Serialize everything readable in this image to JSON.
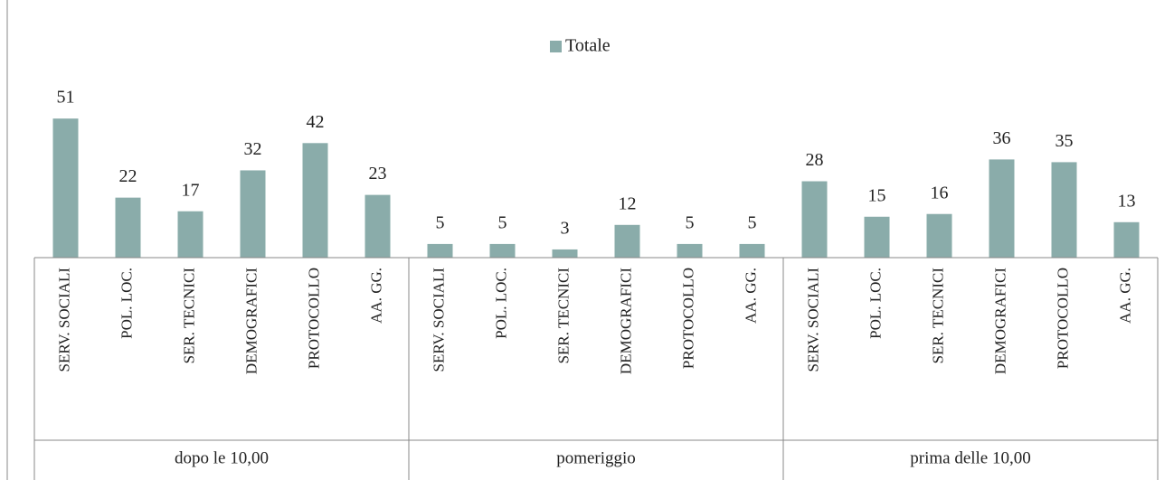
{
  "chart_data": {
    "type": "bar",
    "categories": [
      "SERV. SOCIALI",
      "POL. LOC.",
      "SER. TECNICI",
      "DEMOGRAFICI",
      "PROTOCOLLO",
      "AA. GG.",
      "SERV. SOCIALI",
      "POL. LOC.",
      "SER. TECNICI",
      "DEMOGRAFICI",
      "PROTOCOLLO",
      "AA. GG.",
      "SERV. SOCIALI",
      "POL. LOC.",
      "SER. TECNICI",
      "DEMOGRAFICI",
      "PROTOCOLLO",
      "AA. GG."
    ],
    "groups": [
      {
        "name": "dopo le 10,00",
        "size": 6
      },
      {
        "name": "pomeriggio",
        "size": 6
      },
      {
        "name": "prima delle 10,00",
        "size": 6
      }
    ],
    "series": [
      {
        "name": "Totale",
        "color": "#8aacaa",
        "values": [
          51,
          22,
          17,
          32,
          42,
          23,
          5,
          5,
          3,
          12,
          5,
          5,
          28,
          15,
          16,
          36,
          35,
          13
        ]
      }
    ],
    "ylim": [
      0,
      60
    ],
    "legend": "top"
  }
}
